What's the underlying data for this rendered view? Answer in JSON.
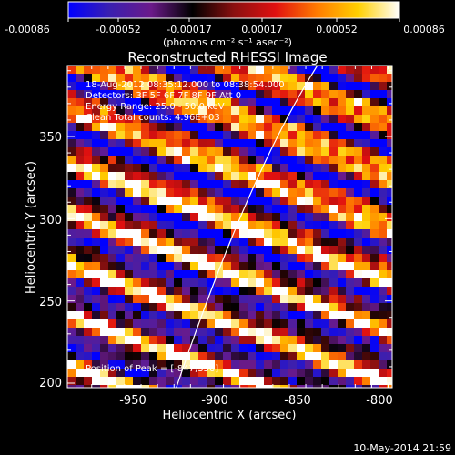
{
  "colorbar": {
    "tick_labels": [
      "-0.00086",
      "-0.00052",
      "-0.00017",
      "0.00017",
      "0.00052",
      "0.00086"
    ],
    "unit_label": "(photons cm⁻² s⁻¹ asec⁻²)",
    "range": [
      -0.00086,
      0.00086
    ],
    "colors": [
      "#0000ff",
      "#3a1fb0",
      "#6b1a8a",
      "#000000",
      "#8a1010",
      "#e01010",
      "#ff7a00",
      "#ffd000",
      "#ffffff"
    ]
  },
  "plot": {
    "title": "Reconstructed RHESSI Image",
    "annotations": [
      "18-Aug-2012 08:35:12.000 to 08:38:54.000",
      "Detectors: 3F 5F 6F 7F 8F 9F  Att 0",
      "Energy Range: 25.0 - 50.0 keV",
      "Clean     Total counts: 4.96E+03"
    ],
    "position_label": "Position of Peak = [-847,336]",
    "xlabel": "Heliocentric X (arcsec)",
    "ylabel": "Heliocentric Y (arcsec)",
    "x_ticks": [
      "-950",
      "-900",
      "-850",
      "-800"
    ],
    "y_ticks": [
      "200",
      "250",
      "300",
      "350"
    ],
    "xlim": [
      -987,
      -797
    ],
    "ylim": [
      197,
      385
    ],
    "limb_color": "#ffffff"
  },
  "footer": {
    "timestamp": "10-May-2014 21:59"
  }
}
